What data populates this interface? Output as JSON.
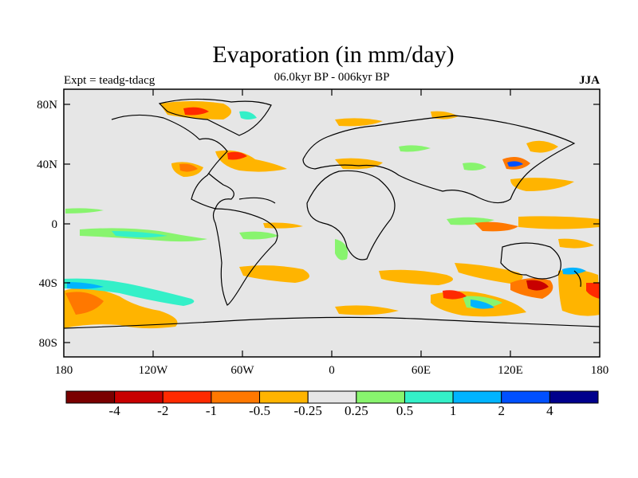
{
  "title": "Evaporation (in mm/day)",
  "subtitle": "06.0kyr BP - 006kyr BP",
  "expt_label": "Expt = teadg-tdacg",
  "season": "JJA",
  "lat_ticks": [
    "80N",
    "40N",
    "0",
    "40S",
    "80S"
  ],
  "lon_ticks": [
    "180",
    "120W",
    "60W",
    "0",
    "60E",
    "120E",
    "180"
  ],
  "colorbar": {
    "colors": [
      "#7a0000",
      "#c80000",
      "#ff2a00",
      "#ff7800",
      "#ffb400",
      "#e6e6e6",
      "#88f46e",
      "#34f0c8",
      "#00b4ff",
      "#0050ff",
      "#00008c"
    ],
    "labels": [
      "-4",
      "-2",
      "-1",
      "-0.5",
      "-0.25",
      "0.25",
      "0.5",
      "1",
      "2",
      "4"
    ]
  }
}
